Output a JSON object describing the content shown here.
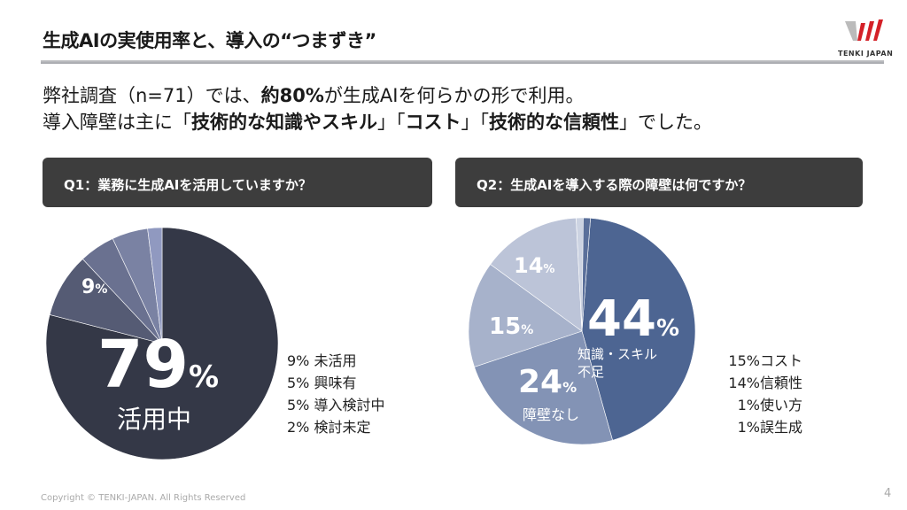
{
  "header": {
    "title": "生成AIの実使用率と、導入の“つまずき”",
    "logo_text": "TENKI JAPAN"
  },
  "lead": {
    "line1": [
      "弊社調査（n=71）では、",
      "約80%",
      "が生成AIを何らかの形で利用。"
    ],
    "line2": [
      "導入障壁は主に「",
      "技術的な知識やスキル",
      "」「",
      "コスト",
      "」「",
      "技術的な信頼性",
      "」でした。"
    ]
  },
  "colors": {
    "accent": "#d42027",
    "header_box": "#3d3d3d"
  },
  "chart_data": [
    {
      "type": "pie",
      "title": "Q1：業務に生成AIを活用していますか？",
      "slices": [
        {
          "label": "活用中",
          "value": 79,
          "color": "#343847"
        },
        {
          "label": "未活用",
          "value": 9,
          "color": "#555b74"
        },
        {
          "label": "興味有",
          "value": 5,
          "color": "#6a7190"
        },
        {
          "label": "導入検討中",
          "value": 5,
          "color": "#7a82a3"
        },
        {
          "label": "検討未定",
          "value": 2,
          "color": "#9099c0"
        }
      ],
      "data_labels": {
        "main_value": "79",
        "main_pct": "%",
        "main_label": "活用中",
        "second_value": "9",
        "second_pct": "%"
      },
      "legend": [
        "9% 未活用",
        "5% 興味有",
        "5% 導入検討中",
        "2% 検討未定"
      ]
    },
    {
      "type": "pie",
      "title": "Q2：生成AIを導入する際の障壁は何ですか？",
      "slices": [
        {
          "label": "知識・スキル不足",
          "value": 44,
          "color": "#4d6592"
        },
        {
          "label": "障壁なし",
          "value": 24,
          "color": "#8393b5"
        },
        {
          "label": "コスト",
          "value": 15,
          "color": "#a7b2cb"
        },
        {
          "label": "信頼性",
          "value": 14,
          "color": "#bcc4d8"
        },
        {
          "label": "使い方",
          "value": 1,
          "color": "#ccd3e2"
        },
        {
          "label": "誤生成",
          "value": 1,
          "color": "#5a6f9a"
        }
      ],
      "data_labels": {
        "v44": "44",
        "l44a": "知識・スキル",
        "l44b": "不足",
        "v24": "24",
        "l24": "障壁なし",
        "v15": "15",
        "v14": "14",
        "pct": "%"
      },
      "legend": [
        "15%コスト",
        "14%信頼性",
        "1%使い方",
        "1%誤生成"
      ]
    }
  ],
  "footer": {
    "copyright": "Copyright © TENKI-JAPAN. All Rights Reserved",
    "page": "4"
  }
}
